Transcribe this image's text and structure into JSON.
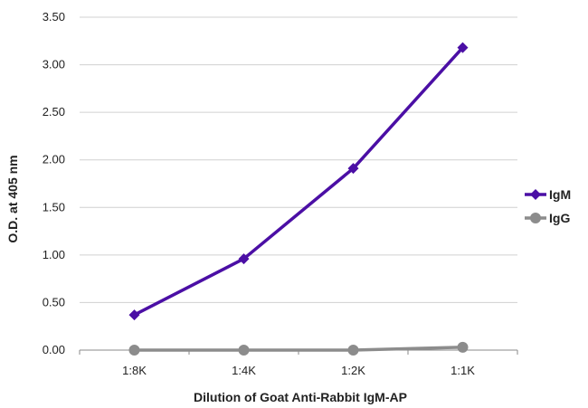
{
  "chart_data": {
    "type": "line",
    "title": "",
    "xlabel": "Dilution of Goat Anti-Rabbit IgM-AP",
    "ylabel": "O.D. at 405 nm",
    "categories": [
      "1:8K",
      "1:4K",
      "1:2K",
      "1:1K"
    ],
    "ylim": [
      0,
      3.5
    ],
    "yticks": [
      "0.00",
      "0.50",
      "1.00",
      "1.50",
      "2.00",
      "2.50",
      "3.00",
      "3.50"
    ],
    "grid": true,
    "legend_position": "right",
    "series": [
      {
        "name": "IgM",
        "values": [
          0.37,
          0.96,
          1.91,
          3.18
        ],
        "color": "#4b0fa5",
        "marker": "diamond"
      },
      {
        "name": "IgG",
        "values": [
          0.0,
          0.0,
          0.0,
          0.03
        ],
        "color": "#8c8c8c",
        "marker": "circle"
      }
    ]
  }
}
